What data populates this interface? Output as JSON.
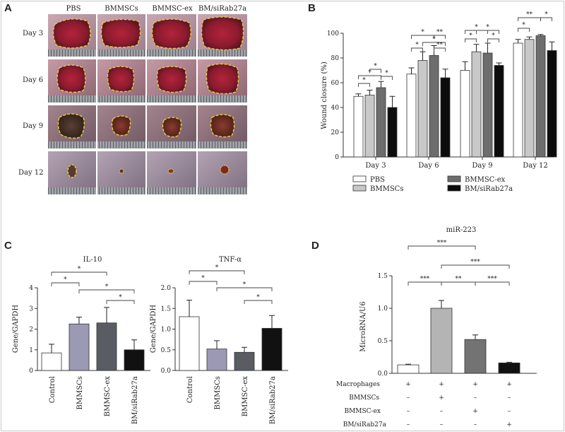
{
  "panels": {
    "a": {
      "label": "A",
      "columns": [
        "PBS",
        "BMMSCs",
        "BMMSC-ex",
        "BM/siRab27a"
      ],
      "rows": [
        "Day 3",
        "Day 6",
        "Day 9",
        "Day 12"
      ]
    },
    "b": {
      "label": "B"
    },
    "c": {
      "label": "C"
    },
    "d": {
      "label": "D"
    }
  },
  "colors": {
    "pbs": "#ffffff",
    "bmmscs": "#c8c8c8",
    "bmmscex": "#6d6d6d",
    "sirab": "#0c0c0c",
    "c_control": "#ffffff",
    "c_bmmscs": "#9b99b4",
    "c_ex": "#5a5c63",
    "c_sirab": "#111111",
    "d_control": "#ffffff",
    "d_bmmscs": "#b4b4b4",
    "d_ex": "#737373",
    "d_sirab": "#111111"
  },
  "chart_data": [
    {
      "id": "wound-closure",
      "type": "bar",
      "ylabel": "Wound closure (%)",
      "ylim": [
        0,
        100
      ],
      "yticks": [
        0,
        20,
        40,
        60,
        80,
        100
      ],
      "categories": [
        "Day 3",
        "Day 6",
        "Day 9",
        "Day 12"
      ],
      "series": [
        {
          "name": "PBS",
          "values": [
            49,
            67,
            70,
            92
          ],
          "errors": [
            2,
            5,
            7,
            3
          ]
        },
        {
          "name": "BMMSCs",
          "values": [
            50,
            78,
            85,
            95
          ],
          "errors": [
            4,
            7,
            6,
            2
          ]
        },
        {
          "name": "BMMSC-ex",
          "values": [
            56,
            82,
            84,
            98
          ],
          "errors": [
            5,
            8,
            8,
            1
          ]
        },
        {
          "name": "BM/siRab27a",
          "values": [
            40,
            64,
            74,
            86
          ],
          "errors": [
            9,
            7,
            2,
            7
          ]
        }
      ],
      "legend": [
        "PBS",
        "BMMSC-ex",
        "BMMSCs",
        "BM/siRab27a"
      ],
      "significance": "*",
      "significance_double": "**"
    },
    {
      "id": "il10",
      "type": "bar",
      "title": "IL-10",
      "ylabel": "Gene/GAPDH",
      "ylim": [
        0,
        4
      ],
      "yticks": [
        0,
        1,
        2,
        3,
        4
      ],
      "categories": [
        "Control",
        "BMMSCs",
        "BMMSC-ex",
        "BM/siRab27a"
      ],
      "values": [
        0.85,
        2.25,
        2.3,
        1.0
      ],
      "errors": [
        0.42,
        0.33,
        0.75,
        0.48
      ],
      "significance": "*"
    },
    {
      "id": "tnfa",
      "type": "bar",
      "title": "TNF-α",
      "ylabel": "Gene/GAPDH",
      "ylim": [
        0,
        2.0
      ],
      "yticks": [
        "0.0",
        "0.5",
        "1.0",
        "1.5",
        "2.0"
      ],
      "categories": [
        "Control",
        "BMMSCs",
        "BMMSC-ex",
        "BM/siRab27a"
      ],
      "values": [
        1.3,
        0.52,
        0.44,
        1.02
      ],
      "errors": [
        0.4,
        0.2,
        0.12,
        0.31
      ],
      "significance": "*"
    },
    {
      "id": "mir223",
      "type": "bar",
      "title": "miR-223",
      "ylabel": "MicroRNA/U6",
      "ylim": [
        0,
        1.5
      ],
      "yticks": [
        "0.0",
        "0.5",
        "1.0",
        "1.5"
      ],
      "values": [
        0.13,
        1.0,
        0.52,
        0.16
      ],
      "errors": [
        0.01,
        0.12,
        0.07,
        0.01
      ],
      "significance_triple": "***",
      "significance_double": "**",
      "conditions": {
        "rows": [
          "Macrophages",
          "BMMSCs",
          "BMMSC-ex",
          "BM/siRab27a"
        ],
        "plus": "+",
        "minus": "–"
      }
    }
  ]
}
